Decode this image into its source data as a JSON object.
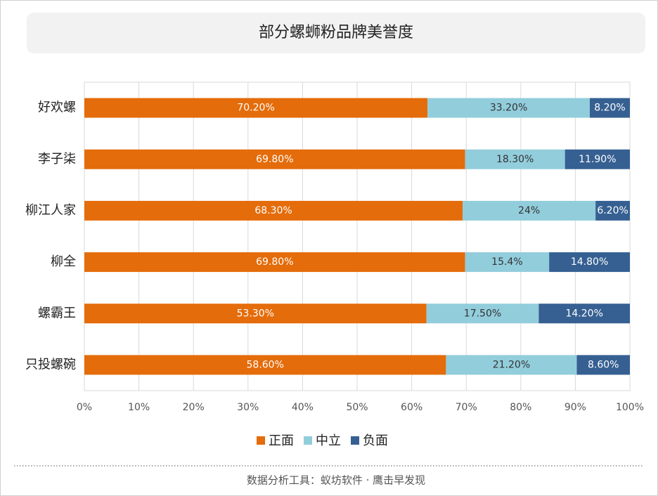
{
  "chart_data": {
    "type": "bar",
    "orientation": "horizontal",
    "stacked": "percent",
    "title": "部分螺蛳粉品牌美誉度",
    "categories": [
      "好欢螺",
      "李子柒",
      "柳江人家",
      "柳全",
      "螺霸王",
      "只投螺碗"
    ],
    "series": [
      {
        "name": "正面",
        "color": "#e46c0a",
        "values": [
          70.2,
          69.8,
          68.3,
          69.8,
          53.3,
          58.6
        ],
        "value_labels": [
          "70.20%",
          "69.80%",
          "68.30%",
          "69.80%",
          "53.30%",
          "58.60%"
        ]
      },
      {
        "name": "中立",
        "color": "#92cddc",
        "values": [
          33.2,
          18.3,
          24,
          15.4,
          17.5,
          21.2
        ],
        "value_labels": [
          "33.20%",
          "18.30%",
          "24%",
          "15.4%",
          "17.50%",
          "21.20%"
        ]
      },
      {
        "name": "负面",
        "color": "#366092",
        "values": [
          8.2,
          11.9,
          6.2,
          14.8,
          14.2,
          8.6
        ],
        "value_labels": [
          "8.20%",
          "11.90%",
          "6.20%",
          "14.80%",
          "14.20%",
          "8.60%"
        ]
      }
    ],
    "xlim": [
      0,
      100
    ],
    "xticks": [
      {
        "value": 0,
        "label": "0%"
      },
      {
        "value": 10,
        "label": "10%"
      },
      {
        "value": 20,
        "label": "20%"
      },
      {
        "value": 30,
        "label": "30%"
      },
      {
        "value": 40,
        "label": "40%"
      },
      {
        "value": 50,
        "label": "50%"
      },
      {
        "value": 60,
        "label": "60%"
      },
      {
        "value": 70,
        "label": "70%"
      },
      {
        "value": 80,
        "label": "80%"
      },
      {
        "value": 90,
        "label": "90%"
      },
      {
        "value": 100,
        "label": "100%"
      }
    ],
    "grid": true,
    "legend": "bottom"
  },
  "footer": "数据分析工具：蚁坊软件 · 鹰击早发现"
}
